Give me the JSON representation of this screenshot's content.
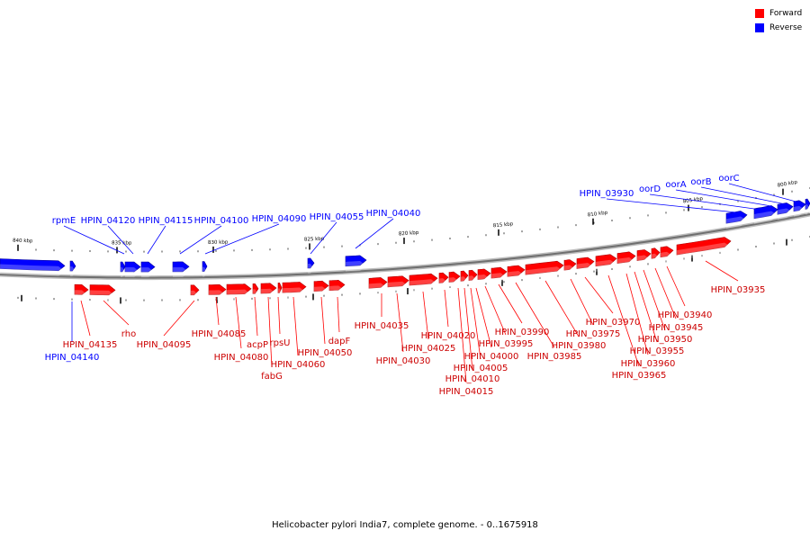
{
  "legend": {
    "forward": {
      "label": "Forward",
      "color": "#ff0000"
    },
    "reverse": {
      "label": "Reverse",
      "color": "#0000ff"
    }
  },
  "caption": "Helicobacter pylori India7, complete genome. - 0..1675918",
  "scale": {
    "unit": "kbp",
    "ticks": [
      "840 kbp",
      "835 kbp",
      "830 kbp",
      "825 kbp",
      "820 kbp",
      "815 kbp",
      "810 kbp",
      "805 kbp",
      "800 kbp"
    ]
  },
  "genes": {
    "reverse": [
      "rpmE",
      "HPIN_04120",
      "HPIN_04115",
      "HPIN_04100",
      "HPIN_04090",
      "HPIN_04055",
      "HPIN_04040",
      "HPIN_03930",
      "oorD",
      "oorA",
      "oorB",
      "oorC",
      "HPIN_04140"
    ],
    "forward": [
      "HPIN_04135",
      "rho",
      "HPIN_04095",
      "HPIN_04085",
      "HPIN_04080",
      "acpP",
      "fabG",
      "rpsU",
      "HPIN_04060",
      "HPIN_04050",
      "dapF",
      "HPIN_04035",
      "HPIN_04030",
      "HPIN_04025",
      "HPIN_04020",
      "HPIN_04015",
      "HPIN_04010",
      "HPIN_04005",
      "HPIN_04000",
      "HPIN_03995",
      "HPIN_03990",
      "HPIN_03985",
      "HPIN_03980",
      "HPIN_03975",
      "HPIN_03970",
      "HPIN_03965",
      "HPIN_03960",
      "HPIN_03955",
      "HPIN_03950",
      "HPIN_03945",
      "HPIN_03940",
      "HPIN_03935"
    ]
  }
}
